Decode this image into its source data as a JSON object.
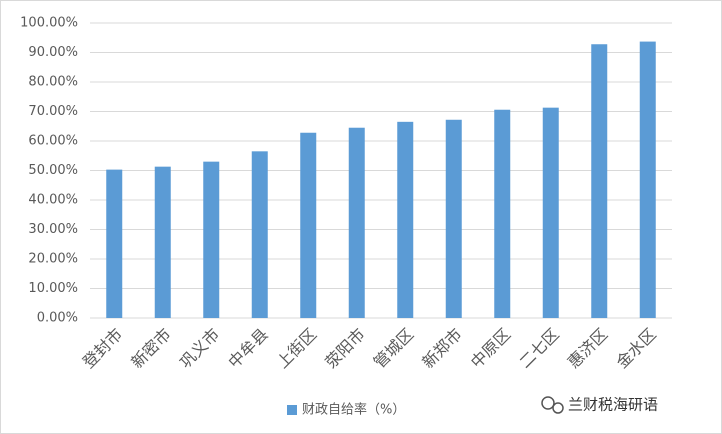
{
  "chart_data": {
    "type": "bar",
    "categories": [
      "登封市",
      "新密市",
      "巩义市",
      "中牟县",
      "上街区",
      "荥阳市",
      "管城区",
      "新郑市",
      "中原区",
      "二七区",
      "惠济区",
      "金水区"
    ],
    "series": [
      {
        "name": "财政自给率（%）",
        "color": "#5b9bd5",
        "values": [
          50.3,
          51.3,
          53.0,
          56.5,
          62.8,
          64.5,
          66.5,
          67.2,
          70.6,
          71.3,
          92.8,
          93.7
        ]
      }
    ],
    "ylim": [
      0,
      100
    ],
    "yticks": [
      {
        "value": 0,
        "label": "0.00%"
      },
      {
        "value": 10,
        "label": "10.00%"
      },
      {
        "value": 20,
        "label": "20.00%"
      },
      {
        "value": 30,
        "label": "30.00%"
      },
      {
        "value": 40,
        "label": "40.00%"
      },
      {
        "value": 50,
        "label": "50.00%"
      },
      {
        "value": 60,
        "label": "60.00%"
      },
      {
        "value": 70,
        "label": "70.00%"
      },
      {
        "value": 80,
        "label": "80.00%"
      },
      {
        "value": 90,
        "label": "90.00%"
      },
      {
        "value": 100,
        "label": "100.00%"
      }
    ],
    "grid": true,
    "legend": "bottom"
  },
  "watermark": "兰财税海研语"
}
